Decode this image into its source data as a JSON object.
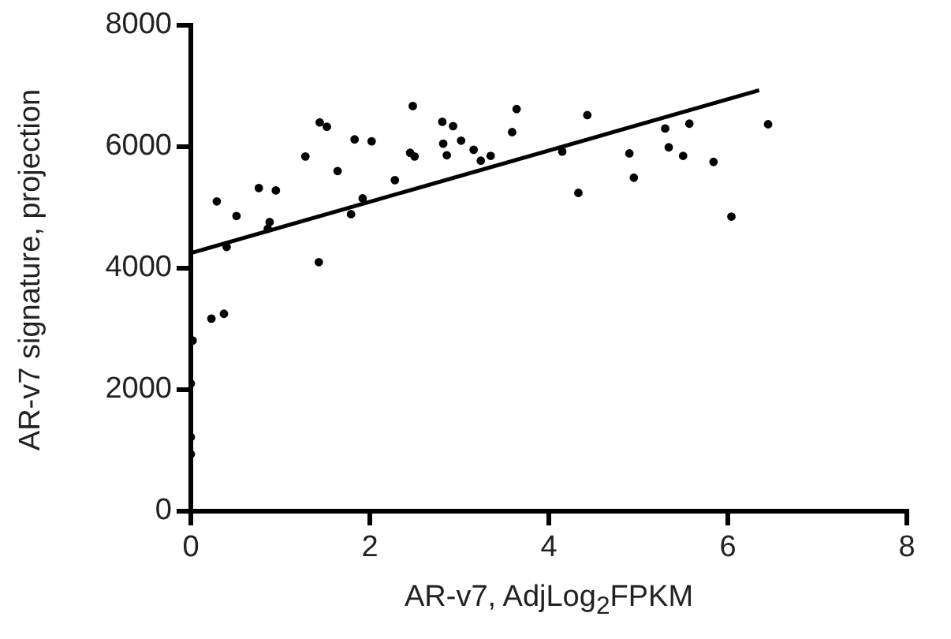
{
  "chart_data": {
    "type": "scatter",
    "xlabel": "AR-v7, AdjLog$_{2}$FPKM",
    "ylabel": "AR-v7 signature, projection",
    "xlim": [
      0,
      8
    ],
    "xticks": [
      0,
      2,
      4,
      6,
      8
    ],
    "ylim": [
      0,
      8000
    ],
    "yticks": [
      0,
      2000,
      4000,
      6000,
      8000
    ],
    "grid": false,
    "legend": false,
    "series": [
      {
        "color": "#000000",
        "marker": "circle",
        "x": [
          0.02,
          0,
          0,
          0,
          0.23,
          0.37,
          0.29,
          0.51,
          0.4,
          0.76,
          0.95,
          0.88,
          0.86,
          1.43,
          1.28,
          1.44,
          1.52,
          1.64,
          1.83,
          2.02,
          1.79,
          1.92,
          2.28,
          2.48,
          2.45,
          2.5,
          2.81,
          2.93,
          2.82,
          3.02,
          2.86,
          3.16,
          3.24,
          3.35,
          3.64,
          3.59,
          4.15,
          4.43,
          4.33,
          4.9,
          4.95,
          5.3,
          5.57,
          5.34,
          5.5,
          5.84,
          6.45,
          6.04
        ],
        "values": [
          2810,
          2100,
          1220,
          940,
          3170,
          3250,
          5100,
          4860,
          4350,
          5320,
          5280,
          4760,
          4650,
          4100,
          5840,
          6400,
          6330,
          5600,
          6120,
          6090,
          4890,
          5150,
          5450,
          6670,
          5900,
          5840,
          6410,
          6340,
          6050,
          6100,
          5860,
          5950,
          5770,
          5850,
          6620,
          6240,
          5920,
          6520,
          5240,
          5890,
          5490,
          6300,
          6380,
          5990,
          5850,
          5750,
          6370,
          4850
        ]
      },
      {
        "type": "line",
        "color": "#000000",
        "x": [
          0,
          6.35
        ],
        "values": [
          4250,
          6930
        ]
      }
    ]
  }
}
